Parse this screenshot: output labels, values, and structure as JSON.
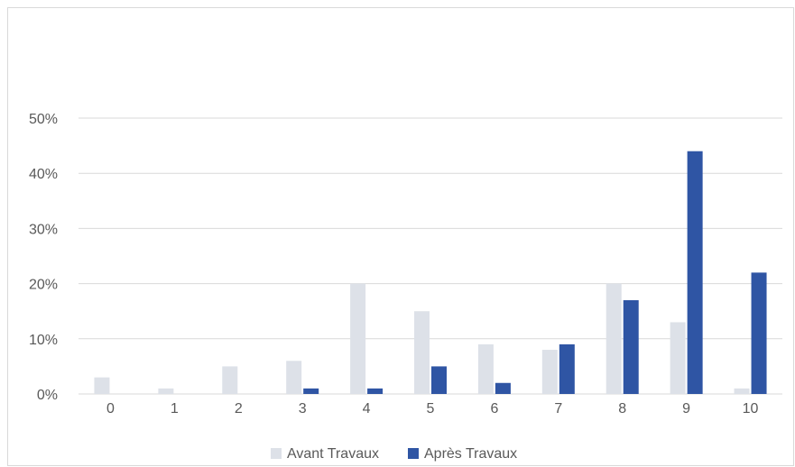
{
  "chart_data": {
    "type": "bar",
    "title": "",
    "xlabel": "",
    "ylabel": "",
    "categories": [
      "0",
      "1",
      "2",
      "3",
      "4",
      "5",
      "6",
      "7",
      "8",
      "9",
      "10"
    ],
    "series": [
      {
        "name": "Avant Travaux",
        "color": "#dde1e8",
        "values": [
          3,
          1,
          5,
          6,
          20,
          15,
          9,
          8,
          20,
          13,
          1
        ]
      },
      {
        "name": "Après Travaux",
        "color": "#2f55a4",
        "values": [
          0,
          0,
          0,
          1,
          1,
          5,
          2,
          9,
          17,
          44,
          22
        ]
      }
    ],
    "ylim": [
      0,
      50
    ],
    "yticks": [
      "0%",
      "10%",
      "20%",
      "30%",
      "40%",
      "50%"
    ],
    "grid": true,
    "legend": "bottom"
  }
}
